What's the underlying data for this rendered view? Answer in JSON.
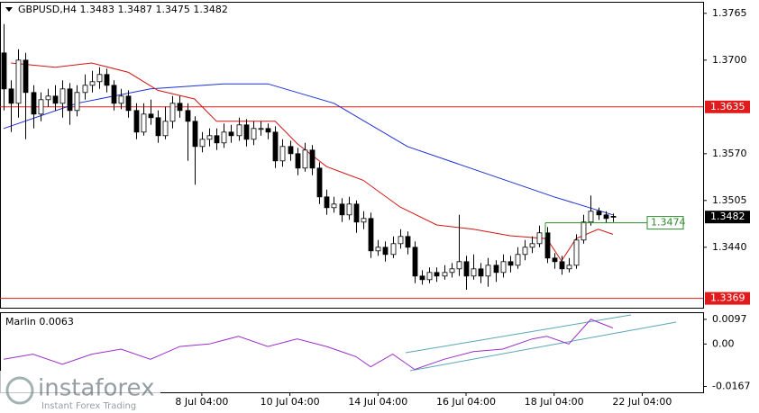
{
  "chart_data": {
    "type": "candlestick",
    "title": "GBPUSD,H4  1.3483 1.3487 1.3475 1.3482",
    "open": [
      1.371,
      1.366,
      1.364,
      1.37,
      1.3655,
      1.3625,
      1.3645,
      1.365,
      1.364,
      1.366,
      1.363,
      1.3655,
      1.3665,
      1.367,
      1.368,
      1.3665,
      1.364,
      1.365,
      1.363,
      1.36,
      1.3625,
      1.362,
      1.3595,
      1.3615,
      1.364,
      1.363,
      1.3615,
      1.358,
      1.359,
      1.3595,
      1.3585,
      1.36,
      1.3595,
      1.361,
      1.359,
      1.3605,
      1.3605,
      1.36,
      1.356,
      1.358,
      1.357,
      1.355,
      1.3575,
      1.355,
      1.351,
      1.3495,
      1.35,
      1.3485,
      1.35,
      1.3475,
      1.348,
      1.3435,
      1.344,
      1.343,
      1.3445,
      1.3455,
      1.344,
      1.34,
      1.3395,
      1.3405,
      1.34,
      1.3405,
      1.341,
      1.342,
      1.34,
      1.341,
      1.34,
      1.3415,
      1.3405,
      1.342,
      1.3415,
      1.343,
      1.344,
      1.3445,
      1.346,
      1.3425,
      1.342,
      1.341,
      1.3415,
      1.345,
      1.3475,
      1.349,
      1.3485,
      1.3483
    ],
    "high": [
      1.375,
      1.3672,
      1.3715,
      1.371,
      1.3665,
      1.3655,
      1.366,
      1.3665,
      1.3672,
      1.3668,
      1.3665,
      1.368,
      1.3685,
      1.369,
      1.3688,
      1.3672,
      1.366,
      1.3658,
      1.364,
      1.364,
      1.3645,
      1.363,
      1.3635,
      1.365,
      1.365,
      1.364,
      1.3622,
      1.36,
      1.3605,
      1.3605,
      1.3612,
      1.361,
      1.362,
      1.3618,
      1.3615,
      1.3615,
      1.3612,
      1.3608,
      1.359,
      1.3588,
      1.3578,
      1.3585,
      1.3582,
      1.3558,
      1.352,
      1.351,
      1.3508,
      1.351,
      1.3505,
      1.349,
      1.3488,
      1.345,
      1.3448,
      1.3455,
      1.3465,
      1.3462,
      1.3448,
      1.3408,
      1.3412,
      1.3412,
      1.3415,
      1.3418,
      1.3485,
      1.3428,
      1.343,
      1.3418,
      1.3425,
      1.3422,
      1.343,
      1.3428,
      1.344,
      1.345,
      1.3455,
      1.347,
      1.3468,
      1.3432,
      1.3428,
      1.3425,
      1.3458,
      1.3485,
      1.3512,
      1.3495,
      1.349,
      1.3487
    ],
    "low": [
      1.363,
      1.36,
      1.362,
      1.359,
      1.3605,
      1.3615,
      1.3635,
      1.363,
      1.362,
      1.361,
      1.3622,
      1.3645,
      1.3655,
      1.366,
      1.3655,
      1.363,
      1.3632,
      1.362,
      1.359,
      1.3595,
      1.361,
      1.3585,
      1.359,
      1.3605,
      1.362,
      1.356,
      1.3527,
      1.3572,
      1.358,
      1.3575,
      1.3578,
      1.3585,
      1.3588,
      1.358,
      1.3582,
      1.3595,
      1.359,
      1.355,
      1.3552,
      1.356,
      1.354,
      1.3545,
      1.354,
      1.35,
      1.3485,
      1.3488,
      1.3475,
      1.3478,
      1.346,
      1.3465,
      1.3425,
      1.3428,
      1.342,
      1.3425,
      1.3438,
      1.343,
      1.339,
      1.3388,
      1.339,
      1.3392,
      1.3395,
      1.3398,
      1.34,
      1.3381,
      1.3395,
      1.339,
      1.3385,
      1.3392,
      1.3398,
      1.3405,
      1.341,
      1.3422,
      1.3432,
      1.344,
      1.3418,
      1.341,
      1.3402,
      1.3405,
      1.341,
      1.3445,
      1.347,
      1.3478,
      1.3474,
      1.3475
    ],
    "close": [
      1.366,
      1.364,
      1.37,
      1.3655,
      1.3625,
      1.3645,
      1.365,
      1.364,
      1.366,
      1.363,
      1.3655,
      1.3665,
      1.367,
      1.368,
      1.3665,
      1.364,
      1.365,
      1.363,
      1.36,
      1.3625,
      1.362,
      1.3595,
      1.3615,
      1.364,
      1.363,
      1.3615,
      1.358,
      1.359,
      1.3595,
      1.3585,
      1.36,
      1.3595,
      1.361,
      1.359,
      1.3605,
      1.3605,
      1.36,
      1.356,
      1.358,
      1.357,
      1.355,
      1.3575,
      1.355,
      1.351,
      1.3495,
      1.35,
      1.3485,
      1.35,
      1.3475,
      1.348,
      1.3435,
      1.344,
      1.343,
      1.3445,
      1.3455,
      1.344,
      1.34,
      1.3395,
      1.3405,
      1.34,
      1.3405,
      1.341,
      1.342,
      1.34,
      1.341,
      1.34,
      1.3415,
      1.3405,
      1.342,
      1.3415,
      1.343,
      1.344,
      1.3445,
      1.346,
      1.3425,
      1.342,
      1.341,
      1.3415,
      1.345,
      1.3475,
      1.349,
      1.3485,
      1.348,
      1.3482
    ],
    "bull_color": "#ffffff",
    "bear_color": "#000000",
    "xlim": [
      -0.5,
      95.3
    ],
    "xticks": [
      {
        "value": 27,
        "label": "8 Jul 04:00"
      },
      {
        "value": 39,
        "label": "10 Jul 04:00"
      },
      {
        "value": 51,
        "label": "14 Jul 04:00"
      },
      {
        "value": 63,
        "label": "16 Jul 04:00"
      },
      {
        "value": 75,
        "label": "18 Jul 04:00"
      },
      {
        "value": 87,
        "label": "22 Jul 04:00"
      }
    ],
    "ylim": [
      1.3356,
      1.3781
    ],
    "yticks": [
      1.3765,
      {
        "value": 1.37,
        "label": "1.3700"
      },
      {
        "value": 1.357,
        "label": "1.3570"
      },
      1.3505,
      {
        "value": 1.344,
        "label": "1.3440"
      }
    ],
    "lines": [
      {
        "color": "#1c2fd6",
        "x": [
          0,
          10,
          20,
          30,
          36,
          45,
          55,
          65,
          75,
          83
        ],
        "values": [
          1.3605,
          1.364,
          1.366,
          1.3667,
          1.3667,
          1.364,
          1.358,
          1.3545,
          1.351,
          1.3485
        ]
      },
      {
        "color": "#d41414",
        "x": [
          1,
          7,
          12,
          17,
          21,
          26,
          29,
          37,
          40,
          44,
          49,
          54,
          59,
          64,
          69,
          74,
          76,
          78,
          81,
          83
        ],
        "values": [
          1.3696,
          1.369,
          1.3696,
          1.3683,
          1.3658,
          1.3646,
          1.3615,
          1.3615,
          1.3584,
          1.3552,
          1.3533,
          1.3496,
          1.3471,
          1.3465,
          1.3456,
          1.3452,
          1.3421,
          1.3452,
          1.3465,
          1.3458
        ]
      }
    ],
    "levels": [
      {
        "value": 1.3635,
        "color": "#e01b1b"
      },
      {
        "value": 1.3369,
        "color": "#e01b1b"
      }
    ],
    "marker": {
      "value": 1.3474,
      "color": "#2e8b2e"
    },
    "indicator": {
      "type": "line",
      "title": "Marlin 0.0063",
      "color": "#9a2fc9",
      "x": [
        0,
        4,
        8,
        12,
        16,
        20,
        24,
        28,
        32,
        36,
        40,
        44,
        48,
        50,
        53,
        56,
        60,
        64,
        68,
        72,
        74,
        77,
        80,
        83
      ],
      "values": [
        -0.006,
        -0.004,
        -0.008,
        -0.004,
        -0.002,
        -0.006,
        -0.001,
        0.0,
        0.003,
        -0.001,
        0.002,
        -0.001,
        -0.005,
        -0.009,
        -0.004,
        -0.01,
        -0.006,
        -0.003,
        -0.002,
        0.002,
        0.003,
        0.0,
        0.0097,
        0.0063
      ],
      "ylim": [
        -0.019,
        0.0125
      ],
      "yticks": [
        0.0097,
        {
          "value": 0,
          "label": "0.00"
        },
        -0.0167
      ]
    }
  },
  "watermark": {
    "name": "instaforex",
    "tagline": "Instant Forex Trading"
  }
}
